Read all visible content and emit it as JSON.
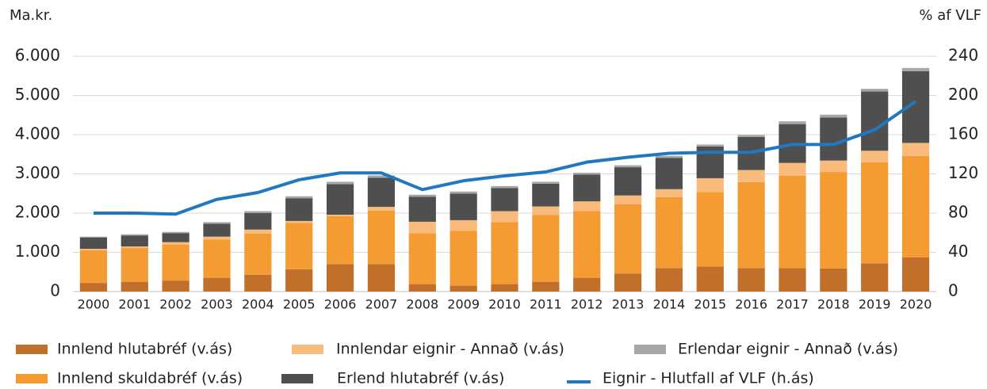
{
  "chart_data": {
    "type": "bar",
    "stacked": true,
    "y_axis_label": "Ma.kr.",
    "y2_axis_label": "% af VLF",
    "categories": [
      "2000",
      "2001",
      "2002",
      "2003",
      "2004",
      "2005",
      "2006",
      "2007",
      "2008",
      "2009",
      "2010",
      "2011",
      "2012",
      "2013",
      "2014",
      "2015",
      "2016",
      "2017",
      "2018",
      "2019",
      "2020"
    ],
    "series": [
      {
        "name": "Innlend hlutabréf (v.ás)",
        "color": "#c0702b",
        "values": [
          220,
          250,
          280,
          350,
          430,
          570,
          700,
          700,
          190,
          150,
          190,
          250,
          350,
          460,
          600,
          640,
          600,
          600,
          590,
          720,
          870
        ]
      },
      {
        "name": "Innlend skuldabréf (v.ás)",
        "color": "#f59b34",
        "values": [
          830,
          860,
          920,
          980,
          1050,
          1180,
          1220,
          1360,
          1300,
          1400,
          1580,
          1700,
          1700,
          1770,
          1810,
          1900,
          2190,
          2350,
          2460,
          2580,
          2590
        ]
      },
      {
        "name": "Innlendar eignir - Annað (v.ás)",
        "color": "#f8bb7c",
        "values": [
          40,
          40,
          60,
          70,
          100,
          50,
          40,
          100,
          290,
          270,
          280,
          220,
          250,
          220,
          200,
          350,
          310,
          330,
          290,
          290,
          330
        ]
      },
      {
        "name": "Erlend hlutabréf (v.ás)",
        "color": "#4f4f4f",
        "values": [
          290,
          280,
          230,
          330,
          420,
          580,
          780,
          740,
          640,
          680,
          590,
          580,
          680,
          720,
          800,
          810,
          840,
          990,
          1100,
          1510,
          1830
        ]
      },
      {
        "name": "Erlendar eignir - Annað (v.ás)",
        "color": "#a6a6a6",
        "values": [
          20,
          30,
          30,
          40,
          50,
          50,
          60,
          60,
          50,
          50,
          50,
          50,
          50,
          50,
          50,
          50,
          50,
          70,
          70,
          70,
          80
        ]
      },
      {
        "name": "Eignir - Hlutfall af VLF (h.ás)",
        "color": "#1f78c1",
        "type": "line",
        "axis": "y2",
        "values": [
          80,
          80,
          79,
          94,
          101,
          114,
          121,
          121,
          104,
          113,
          118,
          122,
          132,
          137,
          141,
          142,
          142,
          150,
          150,
          165,
          194
        ]
      }
    ],
    "ylim": [
      0,
      6000
    ],
    "yticks": [
      0,
      {
        "value": 1000,
        "label": "1.000"
      },
      {
        "value": 2000,
        "label": "2.000"
      },
      {
        "value": 3000,
        "label": "3.000"
      },
      {
        "value": 4000,
        "label": "4.000"
      },
      {
        "value": 5000,
        "label": "5.000"
      },
      {
        "value": 6000,
        "label": "6.000"
      }
    ],
    "y2lim": [
      0,
      240
    ],
    "y2ticks": [
      0,
      40,
      80,
      120,
      160,
      200,
      240
    ],
    "grid": true,
    "legend": "bottom"
  }
}
